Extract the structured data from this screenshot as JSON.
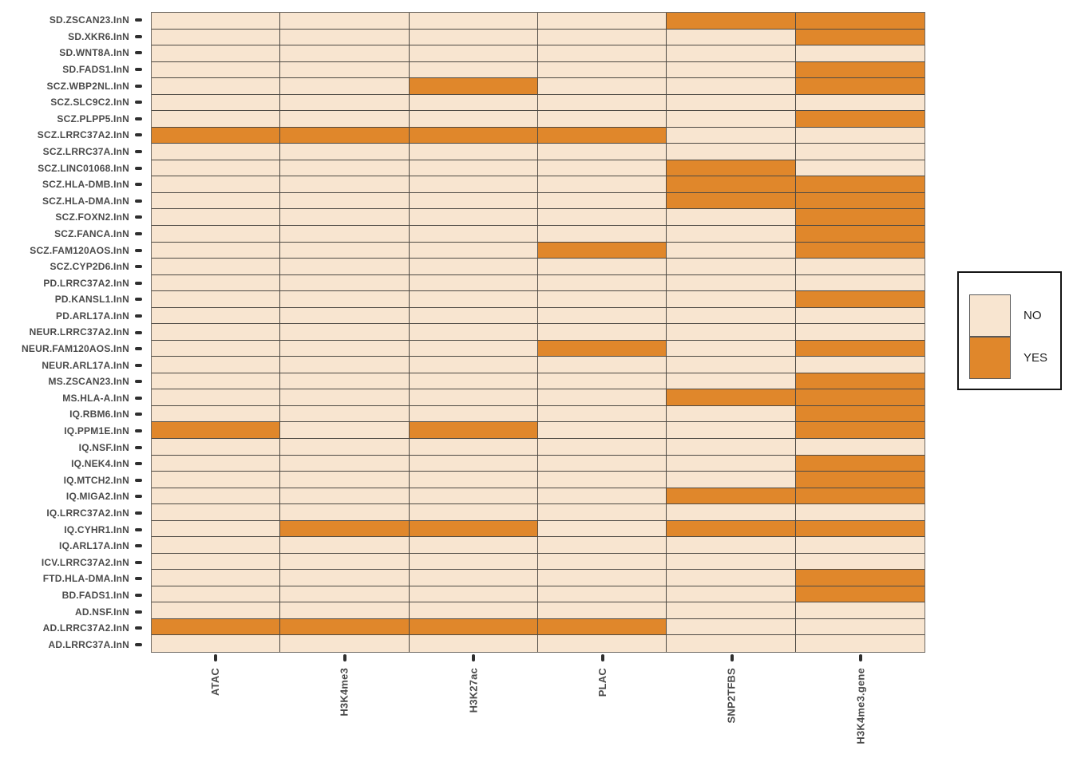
{
  "chart_data": {
    "type": "heatmap",
    "title": "",
    "xlabel": "",
    "ylabel": "",
    "columns": [
      "ATAC",
      "H3K4me3",
      "H3K27ac",
      "PLAC",
      "SNP2TFBS",
      "H3K4me3.gene"
    ],
    "rows": [
      "SD.ZSCAN23.InN",
      "SD.XKR6.InN",
      "SD.WNT8A.InN",
      "SD.FADS1.InN",
      "SCZ.WBP2NL.InN",
      "SCZ.SLC9C2.InN",
      "SCZ.PLPP5.InN",
      "SCZ.LRRC37A2.InN",
      "SCZ.LRRC37A.InN",
      "SCZ.LINC01068.InN",
      "SCZ.HLA-DMB.InN",
      "SCZ.HLA-DMA.InN",
      "SCZ.FOXN2.InN",
      "SCZ.FANCA.InN",
      "SCZ.FAM120AOS.InN",
      "SCZ.CYP2D6.InN",
      "PD.LRRC37A2.InN",
      "PD.KANSL1.InN",
      "PD.ARL17A.InN",
      "NEUR.LRRC37A2.InN",
      "NEUR.FAM120AOS.InN",
      "NEUR.ARL17A.InN",
      "MS.ZSCAN23.InN",
      "MS.HLA-A.InN",
      "IQ.RBM6.InN",
      "IQ.PPM1E.InN",
      "IQ.NSF.InN",
      "IQ.NEK4.InN",
      "IQ.MTCH2.InN",
      "IQ.MIGA2.InN",
      "IQ.LRRC37A2.InN",
      "IQ.CYHR1.InN",
      "IQ.ARL17A.InN",
      "ICV.LRRC37A2.InN",
      "FTD.HLA-DMA.InN",
      "BD.FADS1.InN",
      "AD.NSF.InN",
      "AD.LRRC37A2.InN",
      "AD.LRRC37A.InN"
    ],
    "values": [
      [
        "NO",
        "NO",
        "NO",
        "NO",
        "YES",
        "YES"
      ],
      [
        "NO",
        "NO",
        "NO",
        "NO",
        "NO",
        "YES"
      ],
      [
        "NO",
        "NO",
        "NO",
        "NO",
        "NO",
        "NO"
      ],
      [
        "NO",
        "NO",
        "NO",
        "NO",
        "NO",
        "YES"
      ],
      [
        "NO",
        "NO",
        "YES",
        "NO",
        "NO",
        "YES"
      ],
      [
        "NO",
        "NO",
        "NO",
        "NO",
        "NO",
        "NO"
      ],
      [
        "NO",
        "NO",
        "NO",
        "NO",
        "NO",
        "YES"
      ],
      [
        "YES",
        "YES",
        "YES",
        "YES",
        "NO",
        "NO"
      ],
      [
        "NO",
        "NO",
        "NO",
        "NO",
        "NO",
        "NO"
      ],
      [
        "NO",
        "NO",
        "NO",
        "NO",
        "YES",
        "NO"
      ],
      [
        "NO",
        "NO",
        "NO",
        "NO",
        "YES",
        "YES"
      ],
      [
        "NO",
        "NO",
        "NO",
        "NO",
        "YES",
        "YES"
      ],
      [
        "NO",
        "NO",
        "NO",
        "NO",
        "NO",
        "YES"
      ],
      [
        "NO",
        "NO",
        "NO",
        "NO",
        "NO",
        "YES"
      ],
      [
        "NO",
        "NO",
        "NO",
        "YES",
        "NO",
        "YES"
      ],
      [
        "NO",
        "NO",
        "NO",
        "NO",
        "NO",
        "NO"
      ],
      [
        "NO",
        "NO",
        "NO",
        "NO",
        "NO",
        "NO"
      ],
      [
        "NO",
        "NO",
        "NO",
        "NO",
        "NO",
        "YES"
      ],
      [
        "NO",
        "NO",
        "NO",
        "NO",
        "NO",
        "NO"
      ],
      [
        "NO",
        "NO",
        "NO",
        "NO",
        "NO",
        "NO"
      ],
      [
        "NO",
        "NO",
        "NO",
        "YES",
        "NO",
        "YES"
      ],
      [
        "NO",
        "NO",
        "NO",
        "NO",
        "NO",
        "NO"
      ],
      [
        "NO",
        "NO",
        "NO",
        "NO",
        "NO",
        "YES"
      ],
      [
        "NO",
        "NO",
        "NO",
        "NO",
        "YES",
        "YES"
      ],
      [
        "NO",
        "NO",
        "NO",
        "NO",
        "NO",
        "YES"
      ],
      [
        "YES",
        "NO",
        "YES",
        "NO",
        "NO",
        "YES"
      ],
      [
        "NO",
        "NO",
        "NO",
        "NO",
        "NO",
        "NO"
      ],
      [
        "NO",
        "NO",
        "NO",
        "NO",
        "NO",
        "YES"
      ],
      [
        "NO",
        "NO",
        "NO",
        "NO",
        "NO",
        "YES"
      ],
      [
        "NO",
        "NO",
        "NO",
        "NO",
        "YES",
        "YES"
      ],
      [
        "NO",
        "NO",
        "NO",
        "NO",
        "NO",
        "NO"
      ],
      [
        "NO",
        "YES",
        "YES",
        "NO",
        "YES",
        "YES"
      ],
      [
        "NO",
        "NO",
        "NO",
        "NO",
        "NO",
        "NO"
      ],
      [
        "NO",
        "NO",
        "NO",
        "NO",
        "NO",
        "NO"
      ],
      [
        "NO",
        "NO",
        "NO",
        "NO",
        "NO",
        "YES"
      ],
      [
        "NO",
        "NO",
        "NO",
        "NO",
        "NO",
        "YES"
      ],
      [
        "NO",
        "NO",
        "NO",
        "NO",
        "NO",
        "NO"
      ],
      [
        "YES",
        "YES",
        "YES",
        "YES",
        "NO",
        "NO"
      ],
      [
        "NO",
        "NO",
        "NO",
        "NO",
        "NO",
        "NO"
      ]
    ],
    "legend": {
      "position": "right",
      "items": [
        {
          "label": "NO",
          "color": "#F8E5D0"
        },
        {
          "label": "YES",
          "color": "#E0872B"
        }
      ]
    },
    "colors": {
      "no_cell": "#F8E5D0",
      "yes_cell": "#E0872B",
      "grid_line": "#4E4A44",
      "frame": "#6F6A63",
      "axis_text": "#4A4A4A",
      "tick": "#2F2F2F",
      "legend_border": "#141414",
      "background": "#FFFFFF"
    },
    "layout": {
      "row_order": "top_to_bottom",
      "grid": "on",
      "cell_border": true,
      "x_tick_label_angle": 90
    }
  }
}
